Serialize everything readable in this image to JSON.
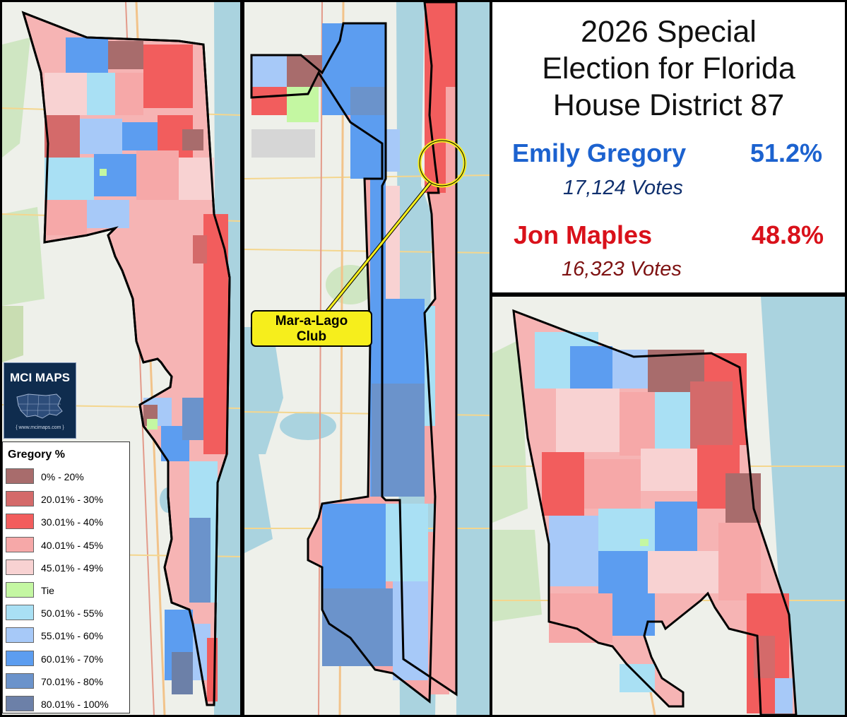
{
  "title_lines": [
    "2026 Special",
    "Election for Florida",
    "House District 87"
  ],
  "candidates": [
    {
      "name": "Emily Gregory",
      "percent": "51.2%",
      "votes": "17,124  Votes",
      "color": "#1c62cf"
    },
    {
      "name": "Jon Maples",
      "percent": "48.8%",
      "votes": "16,323  Votes",
      "color": "#d9111a"
    }
  ],
  "legend": {
    "title": "Gregory  %",
    "items": [
      {
        "label": "0% - 20%",
        "color": "#a86c6c"
      },
      {
        "label": "20.01% - 30%",
        "color": "#d46a6a"
      },
      {
        "label": "30.01% - 40%",
        "color": "#f25d5d"
      },
      {
        "label": "40.01% - 45%",
        "color": "#f6a8a8"
      },
      {
        "label": "45.01% - 49%",
        "color": "#f8d2d2"
      },
      {
        "label": "Tie",
        "color": "#c4f7a2"
      },
      {
        "label": "50.01% - 55%",
        "color": "#a9e0f4"
      },
      {
        "label": "55.01% - 60%",
        "color": "#a7c9f8"
      },
      {
        "label": "60.01% - 70%",
        "color": "#5c9df0"
      },
      {
        "label": "70.01% - 80%",
        "color": "#6b93cb"
      },
      {
        "label": "80.01% - 100%",
        "color": "#6c80a8"
      }
    ]
  },
  "logo": {
    "title": "MCI MAPS",
    "url": "{ www.mcimaps.com }"
  },
  "callout": {
    "line1": "Mar-a-Lago",
    "line2": "Club"
  },
  "colors": {
    "water": "#aad3df",
    "land": "#eef0ea",
    "highlight": "#f6ee1c"
  }
}
